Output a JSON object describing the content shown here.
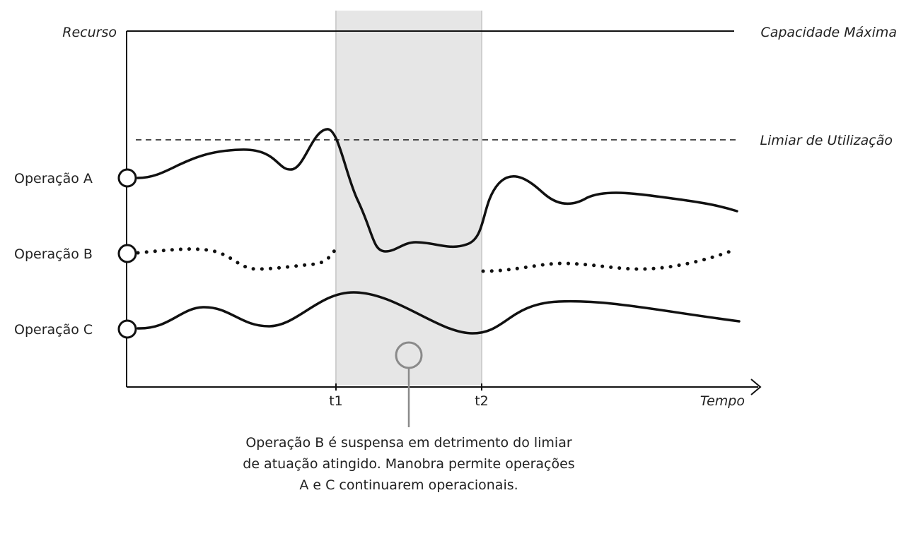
{
  "axes": {
    "y_label": "Recurso",
    "x_label": "Tempo",
    "tick_t1": "t1",
    "tick_t2": "t2"
  },
  "reference_lines": {
    "capacity_label": "Capacidade Máxima",
    "threshold_label": "Limiar de Utilização"
  },
  "operations": [
    {
      "label": "Operação A",
      "style": "solid"
    },
    {
      "label": "Operação B",
      "style": "dotted"
    },
    {
      "label": "Operação C",
      "style": "solid"
    }
  ],
  "annotation": {
    "text": "Operação B é suspensa em detrimento do limiar de atuação atingido. Manobra permite operações A e C continuarem operacionais."
  },
  "colors": {
    "line": "#111111",
    "shade": "#e6e6e6",
    "shade_border": "#cfcfcf",
    "marker_gray": "#8a8a8a"
  }
}
